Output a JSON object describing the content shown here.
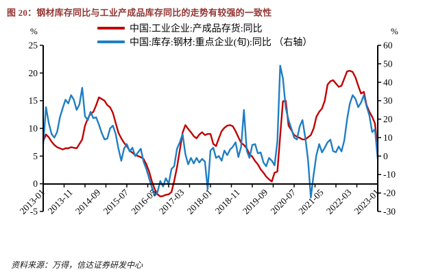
{
  "title": "图 20：钢材库存同比与工业产成品库存同比的走势有较强的一致性",
  "source_note": "资料来源：万得，信达证券研发中心",
  "legend": [
    {
      "label": "中国:工业企业:产成品存货:同比",
      "color": "#c00000"
    },
    {
      "label": "中国:库存:钢材:重点企业(旬):同比 （右轴）",
      "color": "#1f7ec2"
    }
  ],
  "left_axis": {
    "unit": "%",
    "max": 25,
    "min": -5,
    "ticks": [
      25,
      20,
      15,
      10,
      5,
      0,
      -5
    ]
  },
  "right_axis": {
    "unit": "%",
    "max": 60,
    "min": -30,
    "ticks": [
      60,
      50,
      40,
      30,
      20,
      10,
      0,
      -10,
      -20,
      -30
    ]
  },
  "x_axis": {
    "labels": [
      "2013-01",
      "2013-11",
      "2014-09",
      "2015-07",
      "2016-05",
      "2017-03",
      "2018-01",
      "2018-11",
      "2019-09",
      "2020-07",
      "2021-05",
      "2022-03",
      "2023-01"
    ],
    "minor_tick_count": 17
  },
  "chart_data": {
    "type": "line",
    "x_start": "2013-01",
    "x_end": "2023-01",
    "frequency": "monthly",
    "grid": false,
    "series": [
      {
        "name": "中国:工业企业:产成品存货:同比",
        "axis": "left",
        "color": "#c00000",
        "values": [
          7.7,
          8.9,
          8.4,
          7.6,
          7.0,
          6.6,
          6.4,
          6.2,
          6.4,
          6.4,
          6.6,
          6.5,
          6.4,
          7.2,
          8.0,
          10.5,
          11.8,
          12.6,
          13.0,
          14.2,
          15.6,
          15.3,
          15.0,
          14.2,
          13.8,
          12.8,
          11.0,
          9.2,
          8.2,
          7.4,
          6.8,
          6.0,
          5.6,
          5.2,
          5.0,
          4.8,
          4.5,
          3.5,
          2.2,
          0.4,
          -1.0,
          -1.9,
          -2.3,
          -2.2,
          -2.0,
          -1.9,
          -1.5,
          0.5,
          3.0,
          6.1,
          9.2,
          10.6,
          9.9,
          9.3,
          8.6,
          8.2,
          8.9,
          9.3,
          8.8,
          9.0,
          9.0,
          7.2,
          6.8,
          8.2,
          9.5,
          10.1,
          10.5,
          10.6,
          10.4,
          9.5,
          8.4,
          7.4,
          7.0,
          6.4,
          5.3,
          4.9,
          4.1,
          3.5,
          2.6,
          2.0,
          1.3,
          0.8,
          0.4,
          2.0,
          2.2,
          8.7,
          14.9,
          15.0,
          10.5,
          9.7,
          8.8,
          8.5,
          8.3,
          8.0,
          8.0,
          8.4,
          8.8,
          10.0,
          12.1,
          13.0,
          13.6,
          15.0,
          17.9,
          18.5,
          18.7,
          18.1,
          17.5,
          17.7,
          19.0,
          20.3,
          20.4,
          20.2,
          19.2,
          17.7,
          16.3,
          16.6,
          14.2,
          13.0,
          12.1,
          10.9,
          6.3
        ]
      },
      {
        "name": "中国:库存:钢材:重点企业(旬):同比",
        "axis": "right",
        "color": "#1f7ec2",
        "values": [
          6.5,
          26.5,
          18.0,
          12.0,
          10.0,
          13.0,
          21.0,
          26.0,
          30.5,
          28.5,
          33.0,
          30.5,
          25.0,
          28.0,
          37.0,
          21.5,
          19.5,
          24.0,
          20.5,
          21.0,
          17.0,
          12.5,
          9.0,
          9.5,
          15.0,
          16.5,
          12.0,
          4.0,
          -2.5,
          4.0,
          6.5,
          2.5,
          4.5,
          0.0,
          2.0,
          4.0,
          -3.0,
          -7.0,
          -12.0,
          -17.0,
          -21.5,
          -19.5,
          -13.5,
          -16.5,
          -12.0,
          -15.0,
          -7.0,
          -5.5,
          4.0,
          7.5,
          12.0,
          1.0,
          -4.5,
          -1.0,
          -4.0,
          -1.0,
          -3.5,
          -1.5,
          -3.0,
          -18.0,
          3.0,
          4.5,
          -1.0,
          0.0,
          -2.5,
          3.0,
          0.5,
          3.5,
          5.0,
          7.5,
          -0.5,
          5.0,
          25.0,
          3.0,
          -1.0,
          6.0,
          6.5,
          1.5,
          2.0,
          -3.5,
          -5.5,
          -1.0,
          -2.5,
          -5.0,
          8.0,
          49.0,
          42.0,
          26.0,
          19.5,
          15.0,
          10.0,
          9.0,
          16.0,
          19.5,
          10.0,
          -2.0,
          -22.5,
          -10.0,
          0.5,
          6.5,
          2.0,
          4.5,
          7.5,
          8.9,
          2.7,
          2.1,
          5.2,
          2.5,
          8.5,
          20.0,
          28.5,
          33.0,
          31.0,
          26.5,
          29.0,
          33.0,
          27.0,
          22.0,
          13.0,
          14.5,
          -1.5
        ]
      }
    ]
  }
}
